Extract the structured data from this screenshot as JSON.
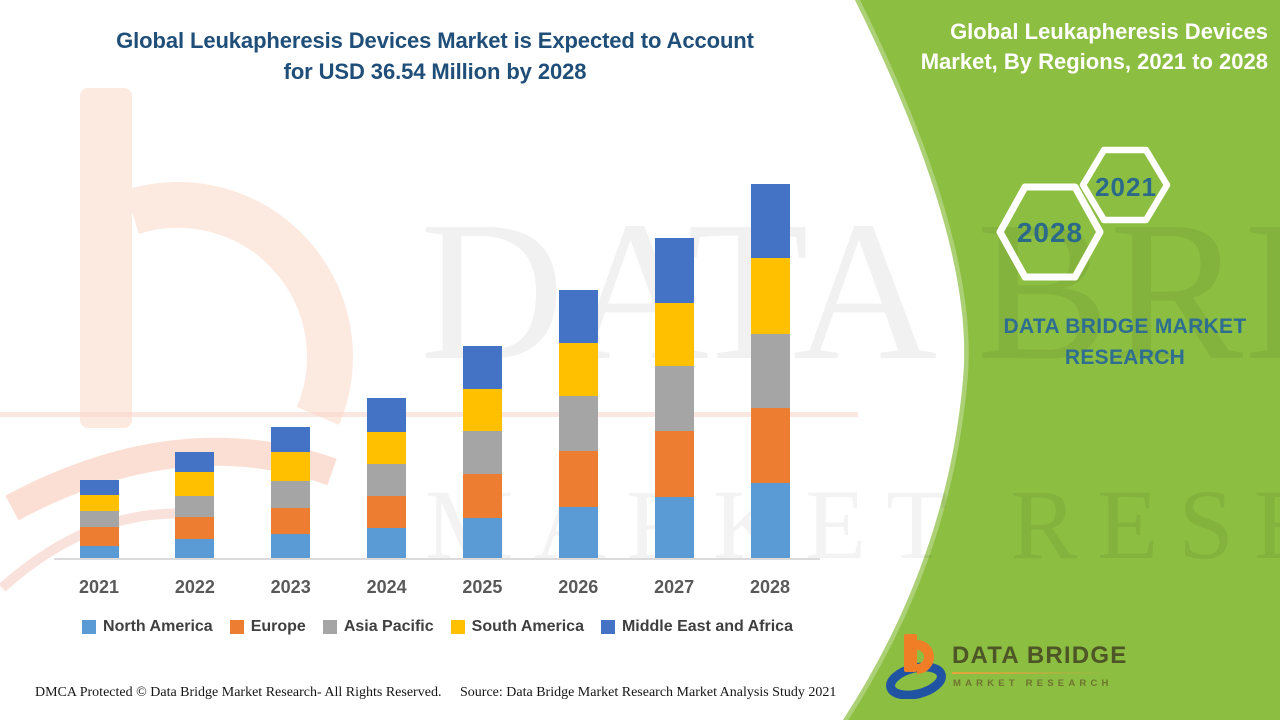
{
  "colors": {
    "panel_green": "#8CBE41",
    "title_navy": "#1F4E79",
    "hexagon_year_text": "#2B6A88",
    "brand_text_blue": "#2E6E91",
    "axis_line_gray": "#DBDBDB",
    "year_label_gray": "#595959",
    "legend_text_gray": "#3F3F3F",
    "logo_orange": "#F07E26",
    "logo_blue": "#2153A3",
    "logo_text_olive": "#4E5526"
  },
  "chart_title": {
    "line1": "Global Leukapheresis Devices Market is Expected to Account",
    "line2": "for USD 36.54 Million by 2028"
  },
  "panel": {
    "title_line1": "Global Leukapheresis Devices",
    "title_line2": "Market, By Regions, 2021 to 2028",
    "hexagon_year_small": "2021",
    "hexagon_year_large": "2028",
    "brand_line1": "DATA BRIDGE MARKET",
    "brand_line2": "RESEARCH",
    "logo_title": "DATA BRIDGE",
    "logo_subtitle": "MARKET RESEARCH"
  },
  "footer": {
    "left": "DMCA Protected © Data Bridge Market Research- All Rights Reserved.",
    "right": "Source: Data Bridge Market Research Market Analysis Study 2021"
  },
  "watermark": {
    "line1": "DATA BRIDGE",
    "line2": "MARKET RESEARCH"
  },
  "chart_data": {
    "type": "bar",
    "stacked": true,
    "title": "Global Leukapheresis Devices Market is Expected to Account for USD 36.54 Million by 2028",
    "unit": "USD Million",
    "xlabel": "",
    "ylabel": "",
    "value_axis_visible": false,
    "gridlines": false,
    "legend_position": "bottom",
    "categories": [
      "2021",
      "2022",
      "2023",
      "2024",
      "2025",
      "2026",
      "2027",
      "2028"
    ],
    "series": [
      {
        "name": "North America",
        "color": "#5B9BD5",
        "values": [
          1.3,
          2.0,
          2.4,
          3.0,
          4.0,
          5.1,
          6.1,
          7.4
        ]
      },
      {
        "name": "Europe",
        "color": "#ED7D31",
        "values": [
          1.8,
          2.1,
          2.6,
          3.1,
          4.3,
          5.4,
          6.4,
          7.3
        ]
      },
      {
        "name": "Asia Pacific",
        "color": "#A5A5A5",
        "values": [
          1.6,
          2.1,
          2.6,
          3.2,
          4.2,
          5.4,
          6.3,
          7.3
        ]
      },
      {
        "name": "South America",
        "color": "#FFC000",
        "values": [
          1.6,
          2.3,
          2.8,
          3.1,
          4.1,
          5.2,
          6.2,
          7.4
        ]
      },
      {
        "name": "Middle East and Africa",
        "color": "#4472C4",
        "values": [
          1.4,
          1.9,
          2.5,
          3.3,
          4.2,
          5.1,
          6.3,
          7.14
        ]
      }
    ],
    "total_2028": 36.54
  }
}
